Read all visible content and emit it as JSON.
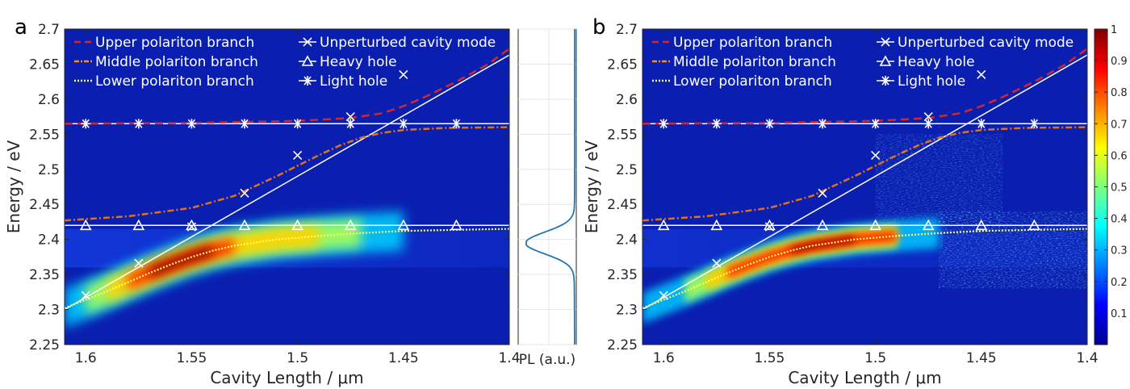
{
  "chart_data": [
    {
      "panel": "a",
      "type": "heatmap",
      "xlabel": "Cavity Length / μm",
      "ylabel": "Energy / eV",
      "xlim": [
        1.61,
        1.4
      ],
      "ylim": [
        2.25,
        2.7
      ],
      "xticks": [
        "1.6",
        "1.55",
        "1.5",
        "1.45",
        "1.4"
      ],
      "xtick_values": [
        1.6,
        1.55,
        1.5,
        1.45,
        1.4
      ],
      "yticks": [
        "2.25",
        "2.3",
        "2.35",
        "2.4",
        "2.45",
        "2.5",
        "2.55",
        "2.6",
        "2.65",
        "2.7"
      ],
      "ytick_values": [
        2.25,
        2.3,
        2.35,
        2.4,
        2.45,
        2.5,
        2.55,
        2.6,
        2.65,
        2.7
      ],
      "legend": [
        {
          "label": "Upper polariton branch",
          "style": "dashed",
          "color": "#d62728"
        },
        {
          "label": "Middle polariton branch",
          "style": "dashdot",
          "color": "#ff8c1a"
        },
        {
          "label": "Lower polariton branch",
          "style": "dotted",
          "color": "#ffff66"
        },
        {
          "label": "Unperturbed cavity mode",
          "marker": "x",
          "color": "#ffffff"
        },
        {
          "label": "Heavy hole",
          "marker": "triangle",
          "color": "#ffffff"
        },
        {
          "label": "Light hole",
          "marker": "asterisk",
          "color": "#ffffff"
        }
      ],
      "legend_position": "top",
      "series": {
        "cavity_mode": {
          "x": [
            1.6,
            1.575,
            1.55,
            1.525,
            1.5,
            1.475,
            1.45,
            1.425,
            1.4
          ],
          "y": [
            2.32,
            2.366,
            2.418,
            2.466,
            2.52,
            2.575,
            2.635,
            2.66,
            2.66
          ]
        },
        "heavy_hole": {
          "x": [
            1.6,
            1.575,
            1.55,
            1.525,
            1.5,
            1.475,
            1.45,
            1.425
          ],
          "y": [
            2.42,
            2.42,
            2.42,
            2.42,
            2.42,
            2.42,
            2.42,
            2.42
          ]
        },
        "light_hole": {
          "x": [
            1.6,
            1.575,
            1.55,
            1.525,
            1.5,
            1.475,
            1.45,
            1.425
          ],
          "y": [
            2.565,
            2.565,
            2.565,
            2.565,
            2.565,
            2.565,
            2.565,
            2.565
          ]
        },
        "upper_branch": {
          "x": [
            1.61,
            1.55,
            1.5,
            1.475,
            1.46,
            1.45,
            1.44,
            1.425,
            1.41,
            1.4
          ],
          "y": [
            2.565,
            2.566,
            2.569,
            2.573,
            2.58,
            2.59,
            2.603,
            2.625,
            2.65,
            2.672
          ]
        },
        "middle_branch": {
          "x": [
            1.61,
            1.58,
            1.55,
            1.53,
            1.51,
            1.5,
            1.49,
            1.48,
            1.47,
            1.46,
            1.45,
            1.43,
            1.4
          ],
          "y": [
            2.427,
            2.433,
            2.445,
            2.462,
            2.49,
            2.505,
            2.52,
            2.534,
            2.545,
            2.552,
            2.556,
            2.559,
            2.56
          ]
        },
        "lower_branch": {
          "x": [
            1.61,
            1.6,
            1.59,
            1.58,
            1.57,
            1.56,
            1.55,
            1.54,
            1.53,
            1.51,
            1.49,
            1.47,
            1.45,
            1.42,
            1.4
          ],
          "y": [
            2.302,
            2.314,
            2.326,
            2.339,
            2.352,
            2.364,
            2.375,
            2.384,
            2.391,
            2.4,
            2.405,
            2.409,
            2.412,
            2.414,
            2.415
          ]
        }
      },
      "pl_spectrum": {
        "xlabel": "PL (a.u.)",
        "peak_energy": 2.395
      }
    },
    {
      "panel": "b",
      "type": "heatmap",
      "xlabel": "Cavity Length / μm",
      "ylabel": "Energy / eV",
      "xlim": [
        1.61,
        1.4
      ],
      "ylim": [
        2.25,
        2.7
      ],
      "xticks": [
        "1.6",
        "1.55",
        "1.5",
        "1.45",
        "1.4"
      ],
      "xtick_values": [
        1.6,
        1.55,
        1.5,
        1.45,
        1.4
      ],
      "yticks": [
        "2.25",
        "2.3",
        "2.35",
        "2.4",
        "2.45",
        "2.5",
        "2.55",
        "2.6",
        "2.65",
        "2.7"
      ],
      "ytick_values": [
        2.25,
        2.3,
        2.35,
        2.4,
        2.45,
        2.5,
        2.55,
        2.6,
        2.65,
        2.7
      ],
      "legend": [
        {
          "label": "Upper polariton branch",
          "style": "dashed",
          "color": "#d62728"
        },
        {
          "label": "Middle polariton branch",
          "style": "dashdot",
          "color": "#ff8c1a"
        },
        {
          "label": "Lower polariton branch",
          "style": "dotted",
          "color": "#ffff66"
        },
        {
          "label": "Unperturbed cavity mode",
          "marker": "x",
          "color": "#ffffff"
        },
        {
          "label": "Heavy hole",
          "marker": "triangle",
          "color": "#ffffff"
        },
        {
          "label": "Light hole",
          "marker": "asterisk",
          "color": "#ffffff"
        }
      ],
      "colorbar": {
        "min": 0,
        "max": 1,
        "ticks": [
          "0.1",
          "0.2",
          "0.3",
          "0.4",
          "0.5",
          "0.6",
          "0.7",
          "0.8",
          "0.9",
          "1"
        ],
        "tick_values": [
          0.1,
          0.2,
          0.3,
          0.4,
          0.5,
          0.6,
          0.7,
          0.8,
          0.9,
          1.0
        ],
        "colormap": "jet"
      }
    }
  ]
}
